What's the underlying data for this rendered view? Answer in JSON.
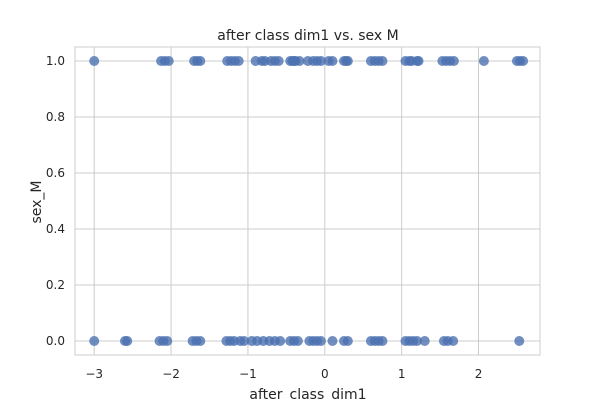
{
  "chart_data": {
    "type": "scatter",
    "title": "after class dim1 vs. sex M",
    "xlabel": "after_class_dim1",
    "ylabel": "sex_M",
    "xlim": [
      -3.25,
      2.8
    ],
    "ylim": [
      -0.05,
      1.05
    ],
    "xticks": [
      -3,
      -2,
      -1,
      0,
      1,
      2
    ],
    "yticks": [
      0.0,
      0.2,
      0.4,
      0.6,
      0.8,
      1.0
    ],
    "xtick_labels": [
      "−3",
      "−2",
      "−1",
      "0",
      "1",
      "2"
    ],
    "ytick_labels": [
      "0.0",
      "0.2",
      "0.4",
      "0.6",
      "0.8",
      "1.0"
    ],
    "grid": true,
    "style": {
      "point_color": "#4c72b0",
      "point_alpha": 0.8,
      "grid_color": "#cccccc"
    },
    "series": [
      {
        "points": [
          {
            "x": -3.0,
            "y": 1
          },
          {
            "x": -2.13,
            "y": 1
          },
          {
            "x": -2.08,
            "y": 1
          },
          {
            "x": -2.03,
            "y": 1
          },
          {
            "x": -1.7,
            "y": 1
          },
          {
            "x": -1.66,
            "y": 1
          },
          {
            "x": -1.62,
            "y": 1
          },
          {
            "x": -1.27,
            "y": 1
          },
          {
            "x": -1.22,
            "y": 1
          },
          {
            "x": -1.17,
            "y": 1
          },
          {
            "x": -1.12,
            "y": 1
          },
          {
            "x": -0.9,
            "y": 1
          },
          {
            "x": -0.82,
            "y": 1
          },
          {
            "x": -0.78,
            "y": 1
          },
          {
            "x": -0.7,
            "y": 1
          },
          {
            "x": -0.65,
            "y": 1
          },
          {
            "x": -0.6,
            "y": 1
          },
          {
            "x": -0.45,
            "y": 1
          },
          {
            "x": -0.42,
            "y": 1
          },
          {
            "x": -0.4,
            "y": 1
          },
          {
            "x": -0.38,
            "y": 1
          },
          {
            "x": -0.33,
            "y": 1
          },
          {
            "x": -0.22,
            "y": 1
          },
          {
            "x": -0.15,
            "y": 1
          },
          {
            "x": -0.1,
            "y": 1
          },
          {
            "x": -0.05,
            "y": 1
          },
          {
            "x": 0.05,
            "y": 1
          },
          {
            "x": 0.1,
            "y": 1
          },
          {
            "x": 0.25,
            "y": 1
          },
          {
            "x": 0.28,
            "y": 1
          },
          {
            "x": 0.3,
            "y": 1
          },
          {
            "x": 0.6,
            "y": 1
          },
          {
            "x": 0.65,
            "y": 1
          },
          {
            "x": 0.7,
            "y": 1
          },
          {
            "x": 0.75,
            "y": 1
          },
          {
            "x": 1.05,
            "y": 1
          },
          {
            "x": 1.1,
            "y": 1
          },
          {
            "x": 1.13,
            "y": 1
          },
          {
            "x": 1.2,
            "y": 1
          },
          {
            "x": 1.22,
            "y": 1
          },
          {
            "x": 1.53,
            "y": 1
          },
          {
            "x": 1.58,
            "y": 1
          },
          {
            "x": 1.63,
            "y": 1
          },
          {
            "x": 1.68,
            "y": 1
          },
          {
            "x": 2.07,
            "y": 1
          },
          {
            "x": 2.5,
            "y": 1
          },
          {
            "x": 2.54,
            "y": 1
          },
          {
            "x": 2.58,
            "y": 1
          },
          {
            "x": -3.0,
            "y": 0
          },
          {
            "x": -2.6,
            "y": 0
          },
          {
            "x": -2.57,
            "y": 0
          },
          {
            "x": -2.15,
            "y": 0
          },
          {
            "x": -2.1,
            "y": 0
          },
          {
            "x": -2.05,
            "y": 0
          },
          {
            "x": -1.72,
            "y": 0
          },
          {
            "x": -1.67,
            "y": 0
          },
          {
            "x": -1.62,
            "y": 0
          },
          {
            "x": -1.28,
            "y": 0
          },
          {
            "x": -1.23,
            "y": 0
          },
          {
            "x": -1.18,
            "y": 0
          },
          {
            "x": -1.1,
            "y": 0
          },
          {
            "x": -1.05,
            "y": 0
          },
          {
            "x": -0.95,
            "y": 0
          },
          {
            "x": -0.88,
            "y": 0
          },
          {
            "x": -0.8,
            "y": 0
          },
          {
            "x": -0.72,
            "y": 0
          },
          {
            "x": -0.65,
            "y": 0
          },
          {
            "x": -0.58,
            "y": 0
          },
          {
            "x": -0.45,
            "y": 0
          },
          {
            "x": -0.4,
            "y": 0
          },
          {
            "x": -0.35,
            "y": 0
          },
          {
            "x": -0.2,
            "y": 0
          },
          {
            "x": -0.15,
            "y": 0
          },
          {
            "x": -0.1,
            "y": 0
          },
          {
            "x": -0.05,
            "y": 0
          },
          {
            "x": 0.1,
            "y": 0
          },
          {
            "x": 0.25,
            "y": 0
          },
          {
            "x": 0.3,
            "y": 0
          },
          {
            "x": 0.6,
            "y": 0
          },
          {
            "x": 0.65,
            "y": 0
          },
          {
            "x": 0.7,
            "y": 0
          },
          {
            "x": 0.75,
            "y": 0
          },
          {
            "x": 1.05,
            "y": 0
          },
          {
            "x": 1.1,
            "y": 0
          },
          {
            "x": 1.15,
            "y": 0
          },
          {
            "x": 1.2,
            "y": 0
          },
          {
            "x": 1.3,
            "y": 0
          },
          {
            "x": 1.55,
            "y": 0
          },
          {
            "x": 1.6,
            "y": 0
          },
          {
            "x": 1.67,
            "y": 0
          },
          {
            "x": 2.53,
            "y": 0
          }
        ]
      }
    ]
  }
}
